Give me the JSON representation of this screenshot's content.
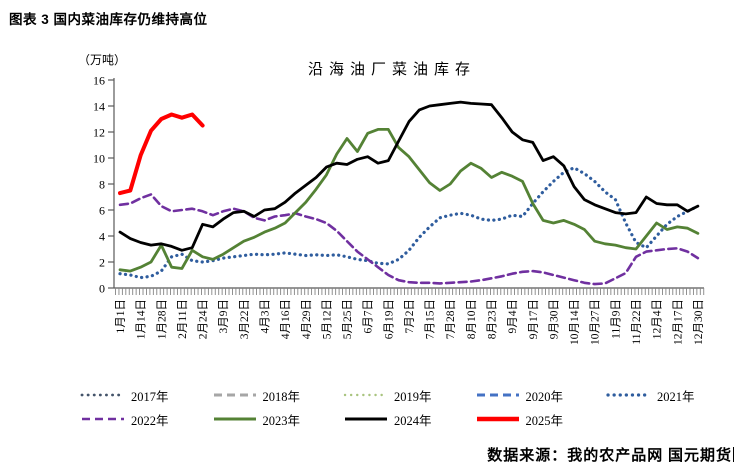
{
  "header": {
    "title": "图表 3 国内菜油库存仍维持高位"
  },
  "source": {
    "text": "数据来源：我的农产品网 国元期货"
  },
  "chart_data": {
    "type": "line",
    "title": "沿海油厂菜油库存",
    "y_unit": "（万吨）",
    "ylim": [
      0,
      16
    ],
    "yticks": [
      0,
      2,
      4,
      6,
      8,
      10,
      12,
      14,
      16
    ],
    "grid": false,
    "legend_position": "bottom",
    "x_frequency": "weekly, 57 points per year; labels shown every 2nd point",
    "x_tick_labels": [
      "1月1日",
      "1月14日",
      "1月28日",
      "2月11日",
      "2月24日",
      "3月9日",
      "3月22日",
      "4月3日",
      "4月16日",
      "4月29日",
      "5月12日",
      "5月25日",
      "6月7日",
      "6月19日",
      "7月2日",
      "7月15日",
      "7月28日",
      "8月10日",
      "8月23日",
      "9月4日",
      "9月17日",
      "9月30日",
      "10月14日",
      "10月27日",
      "11月9日",
      "11月22日",
      "12月4日",
      "12月17日",
      "12月30日"
    ],
    "series": [
      {
        "name": "2017年",
        "color": "#44546A",
        "style": "dotted",
        "width": 2.8,
        "values": [],
        "note": "legend only, no visible line"
      },
      {
        "name": "2018年",
        "color": "#A6A6A6",
        "style": "dashed",
        "width": 3,
        "values": [],
        "note": "legend only, no visible line"
      },
      {
        "name": "2019年",
        "color": "#A9C47F",
        "style": "dotted",
        "width": 2.4,
        "values": [],
        "note": "legend only, no visible line"
      },
      {
        "name": "2020年",
        "color": "#4472C4",
        "style": "dashed",
        "width": 3,
        "values": [],
        "note": "legend only, no visible line"
      },
      {
        "name": "2021年",
        "color": "#2F5D9E",
        "style": "dotted",
        "width": 3.2,
        "values": [
          1.1,
          1.0,
          0.8,
          0.9,
          1.3,
          2.4,
          2.6,
          2.1,
          2.0,
          2.1,
          2.3,
          2.4,
          2.5,
          2.6,
          2.55,
          2.6,
          2.7,
          2.6,
          2.5,
          2.55,
          2.5,
          2.55,
          2.4,
          2.2,
          2.1,
          1.9,
          1.85,
          2.2,
          2.9,
          3.9,
          4.7,
          5.4,
          5.6,
          5.75,
          5.6,
          5.3,
          5.2,
          5.3,
          5.6,
          5.5,
          6.5,
          7.4,
          8.2,
          8.9,
          9.25,
          8.8,
          8.2,
          7.4,
          6.8,
          5.0,
          3.5,
          3.1,
          4.0,
          4.9,
          5.5,
          5.9,
          6.3
        ]
      },
      {
        "name": "2022年",
        "color": "#7030A0",
        "style": "dashed",
        "width": 2.6,
        "values": [
          6.4,
          6.5,
          6.9,
          7.2,
          6.3,
          5.9,
          6.0,
          6.1,
          5.9,
          5.6,
          5.9,
          6.1,
          5.9,
          5.4,
          5.2,
          5.5,
          5.6,
          5.75,
          5.5,
          5.3,
          5.0,
          4.4,
          3.6,
          2.8,
          2.2,
          1.6,
          1.0,
          0.6,
          0.45,
          0.4,
          0.4,
          0.35,
          0.4,
          0.45,
          0.5,
          0.6,
          0.75,
          0.9,
          1.1,
          1.25,
          1.3,
          1.2,
          1.0,
          0.8,
          0.6,
          0.4,
          0.3,
          0.35,
          0.75,
          1.15,
          2.4,
          2.8,
          2.9,
          3.0,
          3.05,
          2.8,
          2.3
        ]
      },
      {
        "name": "2023年",
        "color": "#548235",
        "style": "solid",
        "width": 2.8,
        "values": [
          1.4,
          1.3,
          1.6,
          2.0,
          3.3,
          1.6,
          1.5,
          2.9,
          2.4,
          2.2,
          2.6,
          3.1,
          3.6,
          3.9,
          4.3,
          4.6,
          5.0,
          5.8,
          6.6,
          7.6,
          8.7,
          10.3,
          11.5,
          10.5,
          11.9,
          12.2,
          12.2,
          10.8,
          10.1,
          9.1,
          8.1,
          7.5,
          8.0,
          9.0,
          9.6,
          9.2,
          8.5,
          8.9,
          8.6,
          8.2,
          6.5,
          5.2,
          5.0,
          5.2,
          4.9,
          4.5,
          3.6,
          3.4,
          3.3,
          3.1,
          3.0,
          4.0,
          5.0,
          4.5,
          4.7,
          4.6,
          4.2
        ]
      },
      {
        "name": "2024年",
        "color": "#000000",
        "style": "solid",
        "width": 2.8,
        "values": [
          4.3,
          3.8,
          3.5,
          3.3,
          3.4,
          3.2,
          2.9,
          3.1,
          4.9,
          4.7,
          5.3,
          5.8,
          5.9,
          5.5,
          6.0,
          6.1,
          6.6,
          7.3,
          7.9,
          8.5,
          9.3,
          9.6,
          9.5,
          9.9,
          10.1,
          9.6,
          9.8,
          11.3,
          12.8,
          13.7,
          14.0,
          14.1,
          14.2,
          14.3,
          14.2,
          14.15,
          14.1,
          13.1,
          12.0,
          11.4,
          11.2,
          9.8,
          10.1,
          9.4,
          7.8,
          6.8,
          6.4,
          6.1,
          5.8,
          5.7,
          5.8,
          7.0,
          6.5,
          6.4,
          6.4,
          5.9,
          6.3
        ]
      },
      {
        "name": "2025年",
        "color": "#FF0000",
        "style": "solid",
        "width": 4,
        "values": [
          7.3,
          7.5,
          10.2,
          12.1,
          13.0,
          13.35,
          13.1,
          13.35,
          12.5
        ],
        "note": "partial year, ends late February"
      }
    ]
  }
}
